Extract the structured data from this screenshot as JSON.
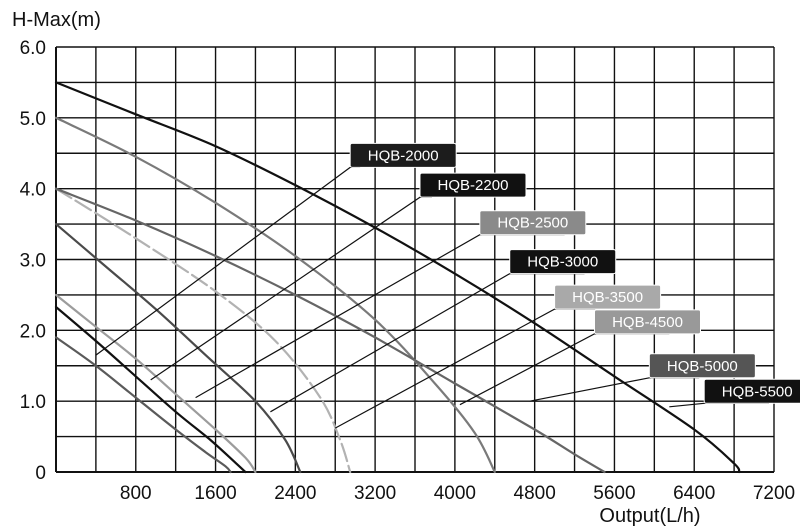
{
  "chart_data": {
    "type": "line",
    "ylabel": "H-Max(m)",
    "xlabel": "Output(L/h)",
    "xlim": [
      0,
      7200
    ],
    "ylim": [
      0,
      6.0
    ],
    "grid": true,
    "x_ticks": [
      {
        "value": 800,
        "label": "800"
      },
      {
        "value": 1600,
        "label": "1600"
      },
      {
        "value": 2400,
        "label": "2400"
      },
      {
        "value": 3200,
        "label": "3200"
      },
      {
        "value": 4000,
        "label": "4000"
      },
      {
        "value": 4800,
        "label": "4800"
      },
      {
        "value": 5600,
        "label": "5600"
      },
      {
        "value": 6400,
        "label": "6400"
      },
      {
        "value": 7200,
        "label": "7200"
      }
    ],
    "y_ticks": [
      {
        "value": 0,
        "label": "0"
      },
      {
        "value": 1.0,
        "label": "1.0"
      },
      {
        "value": 2.0,
        "label": "2.0"
      },
      {
        "value": 3.0,
        "label": "3.0"
      },
      {
        "value": 4.0,
        "label": "4.0"
      },
      {
        "value": 5.0,
        "label": "5.0"
      },
      {
        "value": 6.0,
        "label": "6.0"
      }
    ],
    "series": [
      {
        "name": "HQB-2000",
        "color": "#5a5a5a",
        "dashed": false,
        "label_color": "#1c1c1c",
        "points": [
          [
            0,
            1.9
          ],
          [
            400,
            1.5
          ],
          [
            800,
            1.05
          ],
          [
            1200,
            0.6
          ],
          [
            1500,
            0.28
          ],
          [
            1700,
            0.08
          ],
          [
            1750,
            0
          ]
        ],
        "leader": [
          [
            400,
            1.65
          ],
          [
            2950,
            4.3
          ],
          [
            3050,
            4.3
          ]
        ]
      },
      {
        "name": "HQB-2200",
        "color": "#111111",
        "dashed": false,
        "label_color": "#111111",
        "points": [
          [
            0,
            2.33
          ],
          [
            400,
            1.85
          ],
          [
            800,
            1.35
          ],
          [
            1200,
            0.85
          ],
          [
            1550,
            0.45
          ],
          [
            1800,
            0.13
          ],
          [
            1900,
            0
          ]
        ],
        "leader": [
          [
            950,
            1.3
          ],
          [
            3650,
            3.88
          ],
          [
            3770,
            3.88
          ]
        ]
      },
      {
        "name": "HQB-2500",
        "color": "#9c9c9c",
        "dashed": false,
        "label_color": "#8a8a8a",
        "points": [
          [
            0,
            2.5
          ],
          [
            400,
            2.05
          ],
          [
            800,
            1.6
          ],
          [
            1200,
            1.1
          ],
          [
            1600,
            0.6
          ],
          [
            1900,
            0.2
          ],
          [
            2000,
            0
          ]
        ],
        "leader": [
          [
            1400,
            1.05
          ],
          [
            4250,
            3.35
          ],
          [
            5100,
            3.35
          ]
        ]
      },
      {
        "name": "HQB-3000",
        "color": "#4a4a4a",
        "dashed": false,
        "label_color": "#111111",
        "points": [
          [
            0,
            3.5
          ],
          [
            500,
            2.9
          ],
          [
            1000,
            2.3
          ],
          [
            1500,
            1.65
          ],
          [
            2000,
            1.0
          ],
          [
            2300,
            0.45
          ],
          [
            2450,
            0
          ]
        ],
        "leader": [
          [
            2150,
            0.85
          ],
          [
            4550,
            2.8
          ],
          [
            5300,
            2.8
          ]
        ]
      },
      {
        "name": "HQB-3500",
        "color": "#b2b2b2",
        "dashed": true,
        "label_color": "#a9a9a9",
        "points": [
          [
            0,
            4.0
          ],
          [
            800,
            3.3
          ],
          [
            1600,
            2.55
          ],
          [
            2200,
            1.85
          ],
          [
            2650,
            1.05
          ],
          [
            2850,
            0.45
          ],
          [
            2950,
            0
          ]
        ],
        "leader": [
          [
            2800,
            0.62
          ],
          [
            5000,
            2.3
          ],
          [
            5750,
            2.3
          ]
        ]
      },
      {
        "name": "HQB-4500",
        "color": "#7a7a7a",
        "dashed": false,
        "label_color": "#999999",
        "points": [
          [
            0,
            5.0
          ],
          [
            800,
            4.45
          ],
          [
            1600,
            3.8
          ],
          [
            2400,
            3.05
          ],
          [
            3200,
            2.15
          ],
          [
            3800,
            1.25
          ],
          [
            4200,
            0.55
          ],
          [
            4400,
            0
          ]
        ],
        "leader": [
          [
            4050,
            0.95
          ],
          [
            5400,
            1.95
          ],
          [
            6150,
            1.95
          ]
        ]
      },
      {
        "name": "HQB-5000",
        "color": "#666666",
        "dashed": false,
        "label_color": "#555555",
        "points": [
          [
            0,
            4.0
          ],
          [
            800,
            3.55
          ],
          [
            1600,
            3.05
          ],
          [
            2400,
            2.5
          ],
          [
            3200,
            1.9
          ],
          [
            4000,
            1.25
          ],
          [
            4800,
            0.6
          ],
          [
            5200,
            0.25
          ],
          [
            5500,
            0
          ]
        ],
        "leader": [
          [
            4750,
            1.0
          ],
          [
            5950,
            1.33
          ],
          [
            6450,
            1.33
          ]
        ]
      },
      {
        "name": "HQB-5500",
        "color": "#111111",
        "dashed": false,
        "label_color": "#111111",
        "points": [
          [
            0,
            5.5
          ],
          [
            800,
            5.05
          ],
          [
            1600,
            4.6
          ],
          [
            2400,
            4.05
          ],
          [
            3200,
            3.45
          ],
          [
            4000,
            2.8
          ],
          [
            4800,
            2.1
          ],
          [
            5600,
            1.35
          ],
          [
            6400,
            0.6
          ],
          [
            6800,
            0.12
          ],
          [
            6850,
            0
          ]
        ],
        "leader": [
          [
            6150,
            0.92
          ],
          [
            6500,
            0.97
          ],
          [
            7150,
            0.97
          ]
        ]
      }
    ]
  }
}
